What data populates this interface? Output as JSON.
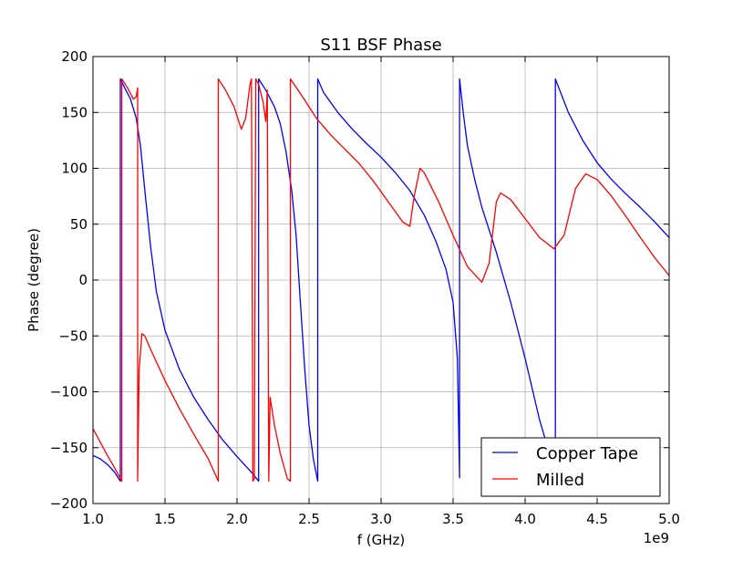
{
  "chart_data": {
    "type": "line",
    "title": "S11 BSF Phase",
    "xlabel": "f (GHz)",
    "ylabel": "Phase (degree)",
    "x_offset_label": "1e9",
    "xlim": [
      1.0,
      5.0
    ],
    "ylim": [
      -200,
      200
    ],
    "x_ticks": [
      1.0,
      1.5,
      2.0,
      2.5,
      3.0,
      3.5,
      4.0,
      4.5,
      5.0
    ],
    "x_tick_labels": [
      "1.0",
      "1.5",
      "2.0",
      "2.5",
      "3.0",
      "3.5",
      "4.0",
      "4.5",
      "5.0"
    ],
    "y_ticks": [
      200,
      150,
      100,
      50,
      0,
      -50,
      -100,
      -150,
      -200
    ],
    "y_tick_labels": [
      "200",
      "150",
      "100",
      "50",
      "0",
      "−50",
      "−100",
      "−150",
      "−200"
    ],
    "grid": true,
    "legend_position": "bottom-right",
    "series": [
      {
        "name": "Copper Tape",
        "color": "#0000ff",
        "points": [
          [
            1.0,
            -157
          ],
          [
            1.05,
            -160
          ],
          [
            1.1,
            -165
          ],
          [
            1.15,
            -172
          ],
          [
            1.19,
            -180
          ],
          [
            1.19,
            180
          ],
          [
            1.22,
            172
          ],
          [
            1.26,
            162
          ],
          [
            1.3,
            145
          ],
          [
            1.33,
            120
          ],
          [
            1.36,
            80
          ],
          [
            1.4,
            30
          ],
          [
            1.44,
            -10
          ],
          [
            1.5,
            -45
          ],
          [
            1.6,
            -80
          ],
          [
            1.7,
            -105
          ],
          [
            1.8,
            -125
          ],
          [
            1.9,
            -143
          ],
          [
            2.0,
            -158
          ],
          [
            2.1,
            -172
          ],
          [
            2.15,
            -180
          ],
          [
            2.15,
            180
          ],
          [
            2.2,
            170
          ],
          [
            2.26,
            155
          ],
          [
            2.3,
            140
          ],
          [
            2.34,
            115
          ],
          [
            2.38,
            80
          ],
          [
            2.41,
            40
          ],
          [
            2.44,
            -20
          ],
          [
            2.47,
            -80
          ],
          [
            2.5,
            -130
          ],
          [
            2.53,
            -160
          ],
          [
            2.56,
            -180
          ],
          [
            2.56,
            180
          ],
          [
            2.6,
            168
          ],
          [
            2.7,
            150
          ],
          [
            2.8,
            135
          ],
          [
            2.9,
            122
          ],
          [
            3.0,
            110
          ],
          [
            3.1,
            96
          ],
          [
            3.2,
            80
          ],
          [
            3.3,
            58
          ],
          [
            3.38,
            35
          ],
          [
            3.45,
            10
          ],
          [
            3.5,
            -20
          ],
          [
            3.53,
            -70
          ],
          [
            3.545,
            -177
          ],
          [
            3.545,
            180
          ],
          [
            3.57,
            150
          ],
          [
            3.6,
            120
          ],
          [
            3.65,
            90
          ],
          [
            3.7,
            65
          ],
          [
            3.8,
            25
          ],
          [
            3.9,
            -20
          ],
          [
            4.0,
            -70
          ],
          [
            4.1,
            -125
          ],
          [
            4.18,
            -160
          ],
          [
            4.21,
            -170
          ],
          [
            4.21,
            180
          ],
          [
            4.3,
            150
          ],
          [
            4.4,
            125
          ],
          [
            4.5,
            105
          ],
          [
            4.6,
            90
          ],
          [
            4.7,
            77
          ],
          [
            4.8,
            65
          ],
          [
            4.9,
            52
          ],
          [
            5.0,
            38
          ]
        ]
      },
      {
        "name": "Milled",
        "color": "#ff0000",
        "points": [
          [
            1.0,
            -133
          ],
          [
            1.05,
            -145
          ],
          [
            1.1,
            -157
          ],
          [
            1.15,
            -168
          ],
          [
            1.2,
            -180
          ],
          [
            1.2,
            180
          ],
          [
            1.24,
            172
          ],
          [
            1.28,
            162
          ],
          [
            1.3,
            164
          ],
          [
            1.31,
            172
          ],
          [
            1.31,
            -180
          ],
          [
            1.32,
            -80
          ],
          [
            1.34,
            -48
          ],
          [
            1.36,
            -50
          ],
          [
            1.4,
            -62
          ],
          [
            1.5,
            -90
          ],
          [
            1.6,
            -115
          ],
          [
            1.7,
            -138
          ],
          [
            1.8,
            -160
          ],
          [
            1.87,
            -180
          ],
          [
            1.87,
            180
          ],
          [
            1.92,
            170
          ],
          [
            1.98,
            155
          ],
          [
            2.03,
            135
          ],
          [
            2.06,
            145
          ],
          [
            2.09,
            175
          ],
          [
            2.1,
            180
          ],
          [
            2.11,
            -180
          ],
          [
            2.12,
            -178
          ],
          [
            2.13,
            180
          ],
          [
            2.15,
            175
          ],
          [
            2.18,
            160
          ],
          [
            2.2,
            142
          ],
          [
            2.21,
            170
          ],
          [
            2.22,
            -180
          ],
          [
            2.23,
            -105
          ],
          [
            2.26,
            -130
          ],
          [
            2.3,
            -155
          ],
          [
            2.35,
            -178
          ],
          [
            2.37,
            -180
          ],
          [
            2.37,
            180
          ],
          [
            2.45,
            165
          ],
          [
            2.55,
            145
          ],
          [
            2.65,
            130
          ],
          [
            2.75,
            117
          ],
          [
            2.85,
            104
          ],
          [
            2.95,
            88
          ],
          [
            3.05,
            70
          ],
          [
            3.15,
            52
          ],
          [
            3.2,
            48
          ],
          [
            3.23,
            75
          ],
          [
            3.27,
            100
          ],
          [
            3.3,
            96
          ],
          [
            3.4,
            70
          ],
          [
            3.5,
            40
          ],
          [
            3.6,
            12
          ],
          [
            3.7,
            -2
          ],
          [
            3.75,
            15
          ],
          [
            3.8,
            70
          ],
          [
            3.83,
            78
          ],
          [
            3.9,
            72
          ],
          [
            4.0,
            55
          ],
          [
            4.1,
            38
          ],
          [
            4.2,
            28
          ],
          [
            4.27,
            40
          ],
          [
            4.35,
            82
          ],
          [
            4.42,
            95
          ],
          [
            4.5,
            90
          ],
          [
            4.6,
            75
          ],
          [
            4.7,
            57
          ],
          [
            4.8,
            38
          ],
          [
            4.9,
            20
          ],
          [
            5.0,
            4
          ]
        ]
      }
    ]
  }
}
